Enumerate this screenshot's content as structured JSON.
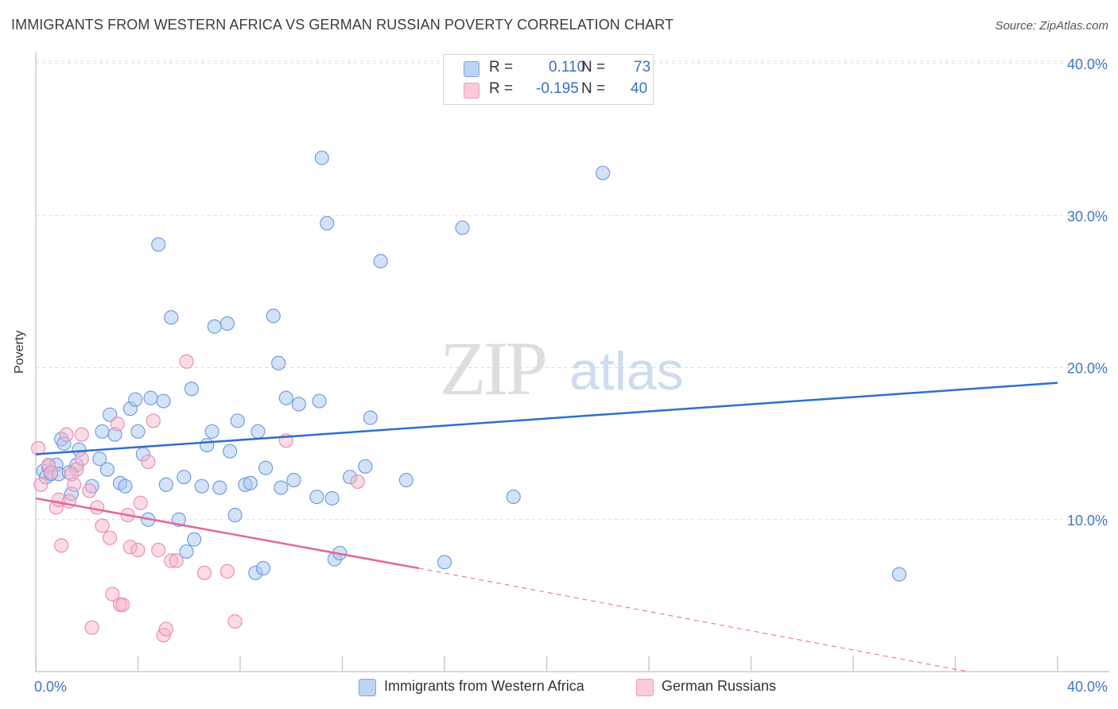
{
  "title": "IMMIGRANTS FROM WESTERN AFRICA VS GERMAN RUSSIAN POVERTY CORRELATION CHART",
  "source": "Source: ZipAtlas.com",
  "watermark": {
    "zip": "ZIP",
    "atlas": "atlas"
  },
  "legend": {
    "rows": [
      {
        "r_label": "R =",
        "r_value": "0.110",
        "n_label": "N =",
        "n_value": "73",
        "color": "#a9c6ef"
      },
      {
        "r_label": "R =",
        "r_value": "-0.195",
        "n_label": "N =",
        "n_value": "40",
        "color": "#f6b8cd"
      }
    ]
  },
  "bottom_legend": [
    {
      "label": "Immigrants from Western Africa",
      "color": "#a9c6ef"
    },
    {
      "label": "German Russians",
      "color": "#f6b8cd"
    }
  ],
  "chart_data": {
    "type": "scatter",
    "ylabel": "Poverty",
    "xlabel": "",
    "xlim": [
      0,
      40
    ],
    "ylim": [
      0,
      40
    ],
    "x_tick_labels": [
      "0.0%",
      "40.0%"
    ],
    "y_ticks": [
      10,
      20,
      30,
      40
    ],
    "y_tick_labels": [
      "10.0%",
      "20.0%",
      "30.0%",
      "40.0%"
    ],
    "grid": true,
    "series": [
      {
        "name": "Immigrants from Western Africa",
        "color": "#6f9fe0",
        "fill": "#a9c6ef",
        "trend": {
          "x": [
            0,
            40
          ],
          "y": [
            14.3,
            19.0
          ],
          "color": "#2e6fcc",
          "dashed_extension": false
        },
        "points": [
          [
            0.3,
            13.2
          ],
          [
            0.4,
            12.8
          ],
          [
            0.5,
            13.5
          ],
          [
            0.6,
            13.0
          ],
          [
            0.8,
            13.6
          ],
          [
            0.9,
            13.0
          ],
          [
            1.0,
            15.3
          ],
          [
            1.1,
            15.0
          ],
          [
            1.3,
            13.1
          ],
          [
            1.4,
            11.7
          ],
          [
            1.6,
            13.6
          ],
          [
            1.7,
            14.6
          ],
          [
            2.2,
            12.2
          ],
          [
            2.5,
            14.0
          ],
          [
            2.6,
            15.8
          ],
          [
            2.8,
            13.3
          ],
          [
            2.9,
            16.9
          ],
          [
            3.1,
            15.6
          ],
          [
            3.3,
            12.4
          ],
          [
            3.5,
            12.2
          ],
          [
            3.7,
            17.3
          ],
          [
            3.9,
            17.9
          ],
          [
            4.0,
            15.8
          ],
          [
            4.2,
            14.3
          ],
          [
            4.4,
            10.0
          ],
          [
            4.5,
            18.0
          ],
          [
            4.8,
            28.1
          ],
          [
            5.0,
            17.8
          ],
          [
            5.1,
            12.3
          ],
          [
            5.3,
            23.3
          ],
          [
            5.6,
            10.0
          ],
          [
            5.8,
            12.8
          ],
          [
            5.9,
            7.9
          ],
          [
            6.1,
            18.6
          ],
          [
            6.2,
            8.7
          ],
          [
            6.5,
            12.2
          ],
          [
            6.7,
            14.9
          ],
          [
            6.9,
            15.8
          ],
          [
            7.0,
            22.7
          ],
          [
            7.2,
            12.1
          ],
          [
            7.5,
            22.9
          ],
          [
            7.6,
            14.5
          ],
          [
            7.8,
            10.3
          ],
          [
            7.9,
            16.5
          ],
          [
            8.2,
            12.3
          ],
          [
            8.4,
            12.4
          ],
          [
            8.6,
            6.5
          ],
          [
            8.7,
            15.8
          ],
          [
            8.9,
            6.8
          ],
          [
            9.0,
            13.4
          ],
          [
            9.3,
            23.4
          ],
          [
            9.5,
            20.3
          ],
          [
            9.6,
            12.1
          ],
          [
            9.8,
            18.0
          ],
          [
            10.1,
            12.6
          ],
          [
            10.3,
            17.6
          ],
          [
            11.0,
            11.5
          ],
          [
            11.1,
            17.8
          ],
          [
            11.2,
            33.8
          ],
          [
            11.4,
            29.5
          ],
          [
            11.6,
            11.4
          ],
          [
            11.7,
            7.4
          ],
          [
            11.9,
            7.8
          ],
          [
            12.3,
            12.8
          ],
          [
            12.9,
            13.5
          ],
          [
            13.1,
            16.7
          ],
          [
            13.5,
            27.0
          ],
          [
            14.5,
            12.6
          ],
          [
            16.0,
            7.2
          ],
          [
            16.7,
            29.2
          ],
          [
            18.7,
            11.5
          ],
          [
            22.2,
            32.8
          ],
          [
            33.8,
            6.4
          ]
        ]
      },
      {
        "name": "German Russians",
        "color": "#ec8fb0",
        "fill": "#f6b8cd",
        "trend": {
          "x": [
            0,
            15
          ],
          "y": [
            11.4,
            6.8
          ],
          "color": "#e4679a",
          "dashed_extension": true,
          "dash_x_end": 36.5,
          "dash_y_end": 0.0
        },
        "points": [
          [
            0.1,
            14.7
          ],
          [
            0.2,
            12.3
          ],
          [
            0.5,
            13.6
          ],
          [
            0.6,
            13.1
          ],
          [
            0.8,
            10.8
          ],
          [
            0.9,
            11.3
          ],
          [
            1.0,
            8.3
          ],
          [
            1.2,
            15.6
          ],
          [
            1.3,
            11.2
          ],
          [
            1.5,
            12.3
          ],
          [
            1.6,
            13.3
          ],
          [
            1.8,
            14.0
          ],
          [
            1.8,
            15.6
          ],
          [
            2.1,
            11.9
          ],
          [
            2.2,
            2.9
          ],
          [
            2.4,
            10.8
          ],
          [
            2.6,
            9.6
          ],
          [
            2.9,
            8.8
          ],
          [
            3.0,
            5.1
          ],
          [
            3.2,
            16.3
          ],
          [
            3.3,
            4.4
          ],
          [
            3.4,
            4.4
          ],
          [
            3.6,
            10.3
          ],
          [
            3.7,
            8.2
          ],
          [
            4.0,
            8.0
          ],
          [
            4.1,
            11.1
          ],
          [
            4.4,
            13.8
          ],
          [
            4.6,
            16.5
          ],
          [
            4.8,
            8.0
          ],
          [
            5.0,
            2.4
          ],
          [
            5.1,
            2.8
          ],
          [
            5.3,
            7.3
          ],
          [
            5.5,
            7.3
          ],
          [
            5.9,
            20.4
          ],
          [
            6.6,
            6.5
          ],
          [
            7.5,
            6.6
          ],
          [
            7.8,
            3.3
          ],
          [
            9.8,
            15.2
          ],
          [
            12.6,
            12.5
          ],
          [
            1.4,
            13.0
          ]
        ]
      }
    ]
  }
}
